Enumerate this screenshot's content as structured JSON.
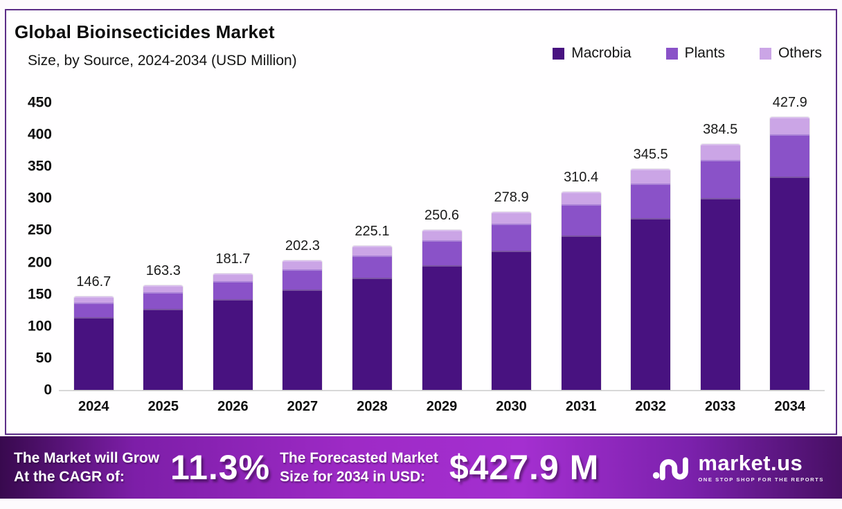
{
  "card": {
    "title": "Global Bioinsecticides Market",
    "subtitle": "Size, by Source, 2024-2034 (USD Million)"
  },
  "chart_data": {
    "type": "bar",
    "stacked": true,
    "title": "Global Bioinsecticides Market Size, by Source, 2024-2034 (USD Million)",
    "categories": [
      "2024",
      "2025",
      "2026",
      "2027",
      "2028",
      "2029",
      "2030",
      "2031",
      "2032",
      "2033",
      "2034"
    ],
    "totals": [
      146.7,
      163.3,
      181.7,
      202.3,
      225.1,
      250.6,
      278.9,
      310.4,
      345.5,
      384.5,
      427.9
    ],
    "series": [
      {
        "name": "Macrobia",
        "color": "#481280",
        "values": [
          114.4,
          127.4,
          141.7,
          157.8,
          175.6,
          195.5,
          217.5,
          242.1,
          269.5,
          299.9,
          333.8
        ]
      },
      {
        "name": "Plants",
        "color": "#8a52c8",
        "values": [
          22.7,
          25.3,
          28.2,
          31.4,
          34.9,
          38.8,
          43.2,
          48.1,
          53.6,
          59.6,
          66.3
        ]
      },
      {
        "name": "Others",
        "color": "#cba5e6",
        "values": [
          9.6,
          10.6,
          11.8,
          13.1,
          14.6,
          16.3,
          18.2,
          20.2,
          22.4,
          25.0,
          27.8
        ]
      }
    ],
    "ylim": [
      0,
      450
    ],
    "yticks": [
      0,
      50,
      100,
      150,
      200,
      250,
      300,
      350,
      400,
      450
    ],
    "grid": false,
    "legend_position": "top-right",
    "value_labels": "stack totals shown above each bar"
  },
  "banner": {
    "cagr_line1": "The Market will Grow",
    "cagr_line2": "At the CAGR of:",
    "cagr_value": "11.3%",
    "forecast_line1": "The Forecasted Market",
    "forecast_line2": "Size for 2034 in USD:",
    "forecast_value": "$427.9 M",
    "brand_name": "market.us",
    "brand_tagline": "ONE STOP SHOP FOR THE REPORTS"
  },
  "colors": {
    "card_border": "#5c2d87",
    "baseline": "#d8d8d8",
    "banner_gradient": [
      "#38094e",
      "#9e2ac6",
      "#a42fd0",
      "#470f64"
    ]
  }
}
